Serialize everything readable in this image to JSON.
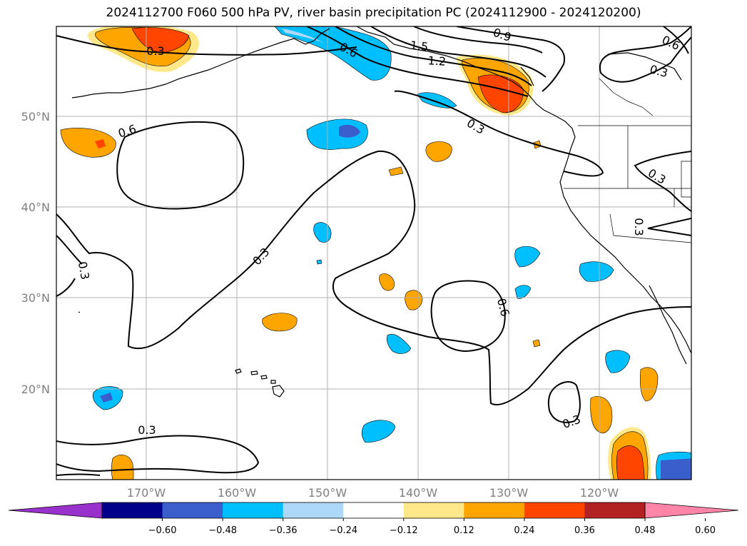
{
  "title": "2024112700 F060 500 hPa PV, river basin precipitation PC (2024112900 - 2024120200)",
  "map": {
    "lat_labels": [
      "50°N",
      "40°N",
      "30°N",
      "20°N"
    ],
    "lon_labels": [
      "170°W",
      "160°W",
      "150°W",
      "140°W",
      "130°W",
      "120°W"
    ],
    "contour_labels": [
      "0.3",
      "0.6",
      "0.6",
      "1.5",
      "1.2",
      "0.9",
      "0.6",
      "0.3",
      "0.3",
      "0.3",
      "0.3",
      "0.3",
      "0.3",
      "0.6",
      "0.3",
      "0.3"
    ]
  },
  "colorbar": {
    "tick_labels": [
      "−0.60",
      "−0.48",
      "−0.36",
      "−0.24",
      "−0.12",
      "0.12",
      "0.24",
      "0.36",
      "0.48",
      "0.60"
    ],
    "colors": [
      "#9932cc",
      "#00008b",
      "#3a5fcd",
      "#00bfff",
      "#add8f7",
      "#ffffff",
      "#ffe88a",
      "#ffa500",
      "#ff4500",
      "#b22222",
      "#ff85a8"
    ]
  }
}
